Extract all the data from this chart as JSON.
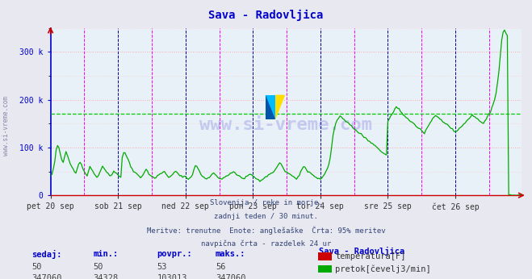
{
  "title": "Sava - Radovljica",
  "title_color": "#0000cc",
  "bg_color": "#e8e8f0",
  "plot_bg_color": "#e8f0f8",
  "grid_color": "#ccaaaa",
  "xlabel_labels": [
    "pet 20 sep",
    "sob 21 sep",
    "ned 22 sep",
    "pon 23 sep",
    "tor 24 sep",
    "sre 25 sep",
    "čet 26 sep"
  ],
  "ylabel_labels": [
    "0",
    "100 k",
    "200 k",
    "300 k"
  ],
  "ylim": [
    0,
    350000
  ],
  "subtitle_lines": [
    "Slovenija / reke in morje.",
    "zadnji teden / 30 minut.",
    "Meritve: trenutne  Enote: anglešaške  Črta: 95% meritev",
    "navpična črta - razdelek 24 ur"
  ],
  "footer_headers": [
    "sedaj:",
    "min.:",
    "povpr.:",
    "maks.:"
  ],
  "footer_row1": [
    "50",
    "50",
    "53",
    "56"
  ],
  "footer_row2": [
    "347060",
    "34328",
    "103013",
    "347060"
  ],
  "legend_title": "Sava - Radovljica",
  "legend_items": [
    {
      "label": "temperatura[F]",
      "color": "#cc0000"
    },
    {
      "label": "pretok[čevelj3/min]",
      "color": "#00aa00"
    }
  ],
  "vline_color_magenta": "#ff00ff",
  "vline_color_darkblue": "#000099",
  "hline_avg_color": "#00cc00",
  "hline_avg_value": 170000,
  "left_spine_color": "#0000cc",
  "bottom_spine_color": "#cc0000",
  "n_points": 336
}
